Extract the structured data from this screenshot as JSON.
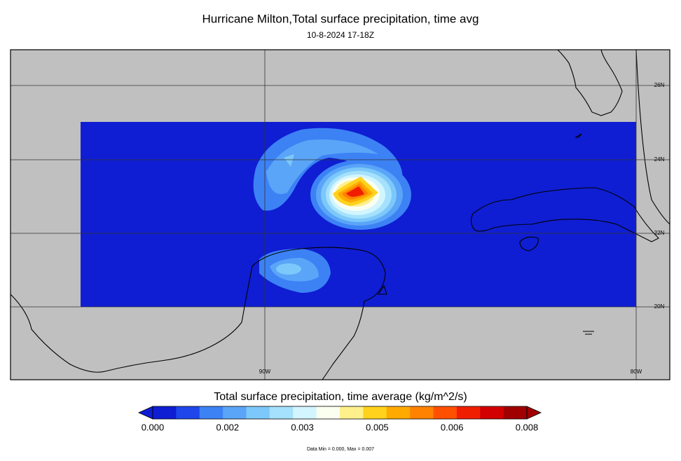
{
  "title": "Hurricane Milton,Total surface precipitation, time avg",
  "subtitle": "10-8-2024 17-18Z",
  "map": {
    "lat_labels": [
      "26N",
      "24N",
      "22N",
      "20N"
    ],
    "lon_labels": [
      "90W",
      "80W"
    ]
  },
  "colorbar": {
    "title": "Total surface precipitation, time average (kg/m^2/s)",
    "colors": [
      "#0f1ed2",
      "#1e46eb",
      "#3c82f5",
      "#5aa5f8",
      "#7dc8fa",
      "#a5e1fc",
      "#d2f5ff",
      "#fafff0",
      "#fff08c",
      "#ffd21e",
      "#ffaa00",
      "#ff8200",
      "#ff5000",
      "#f01e00",
      "#d20000",
      "#a00000"
    ],
    "tick_labels": [
      "0.000",
      "0.002",
      "0.003",
      "0.005",
      "0.006",
      "0.008"
    ]
  },
  "footer": "Data Min = 0.000, Max = 0.007"
}
